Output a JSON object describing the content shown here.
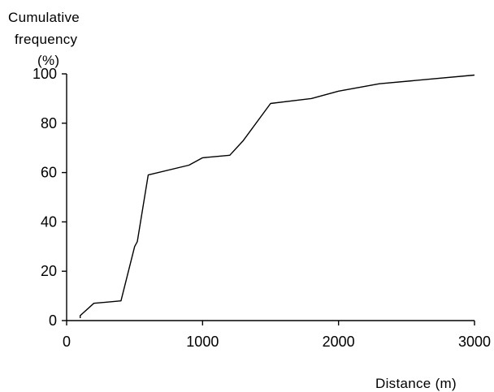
{
  "chart_data": {
    "type": "line",
    "title": "",
    "ylabel_lines": [
      "Cumulative",
      "frequency",
      "(%)"
    ],
    "xlabel": "Distance (m)",
    "xlim": [
      0,
      3000
    ],
    "ylim": [
      0,
      100
    ],
    "x_ticks": [
      0,
      1000,
      2000,
      3000
    ],
    "y_ticks": [
      0,
      20,
      40,
      60,
      80,
      100
    ],
    "grid": false,
    "legend": "none",
    "series": [
      {
        "x": [
          100,
          100,
          200,
          400,
          500,
          520,
          600,
          900,
          1000,
          1200,
          1300,
          1500,
          1800,
          2000,
          2300,
          2700,
          3000
        ],
        "y": [
          1,
          2,
          7,
          8,
          30,
          32,
          59,
          63,
          66,
          67,
          73,
          88,
          90,
          93,
          96,
          98,
          99.5
        ]
      }
    ]
  }
}
